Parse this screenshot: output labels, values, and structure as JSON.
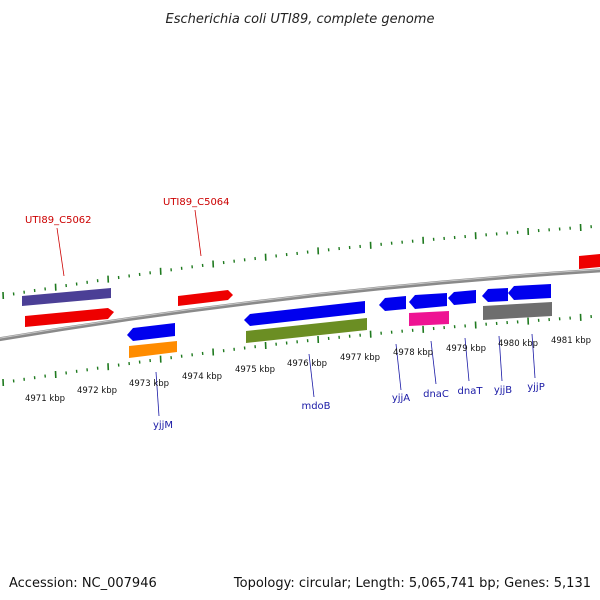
{
  "title": "Escherichia coli UTI89, complete genome",
  "footer": {
    "accession": "Accession: NC_007946",
    "summary": "Topology: circular; Length: 5,065,741 bp; Genes: 5,131"
  },
  "colors": {
    "backbone": "#8a8a8a",
    "ticks": "#1f7a1f",
    "red_gene": "#ee0000",
    "blue_gene": "#0000ee",
    "purple_gene": "#4b3f96",
    "orange_gene": "#ff8c00",
    "olive_gene": "#6b8e23",
    "pink_gene": "#ee1493",
    "gray_gene": "#6e6e6e",
    "label_red": "#cc0000",
    "label_blue": "#1a1aa6"
  },
  "kbp_labels": [
    "4971 kbp",
    "4972 kbp",
    "4973 kbp",
    "4974 kbp",
    "4975 kbp",
    "4976 kbp",
    "4977 kbp",
    "4978 kbp",
    "4979 kbp",
    "4980 kbp",
    "4981 kbp"
  ],
  "upper_gene_labels": [
    "UTI89_C5062",
    "UTI89_C5064"
  ],
  "lower_gene_labels": [
    "yjjM",
    "mdoB",
    "yjjA",
    "dnaC",
    "dnaT",
    "yjjB",
    "yjjP"
  ]
}
